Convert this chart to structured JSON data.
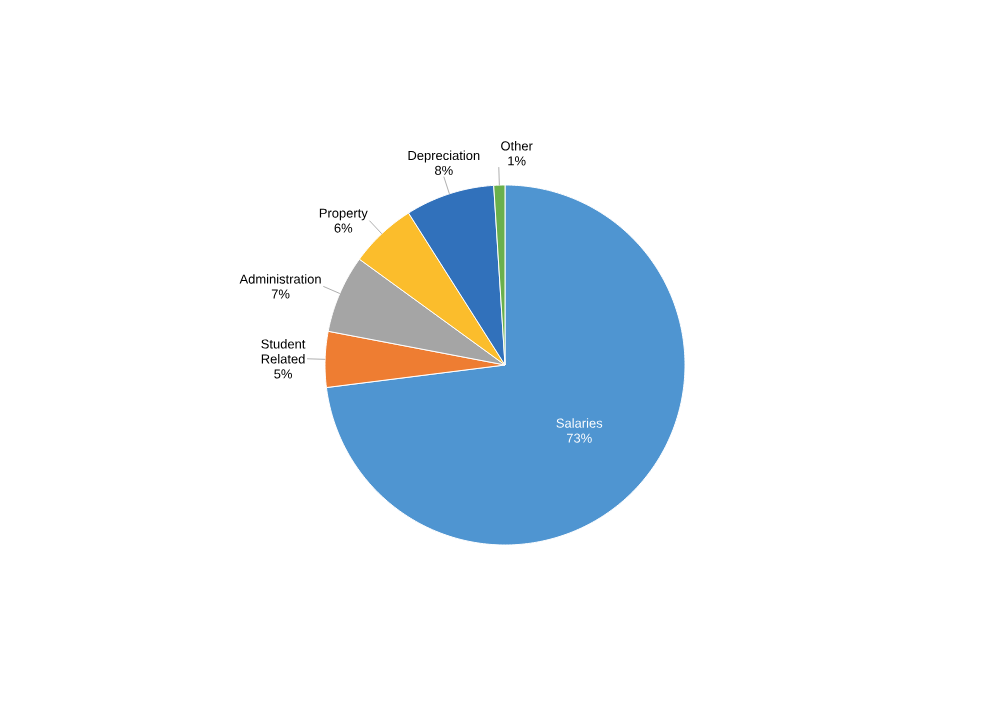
{
  "chart_data": {
    "type": "pie",
    "categories": [
      "Salaries",
      "Student Related",
      "Administration",
      "Property",
      "Depreciation",
      "Other"
    ],
    "values": [
      73,
      5,
      7,
      6,
      8,
      1
    ],
    "colors": [
      "#4f95d1",
      "#ee7d32",
      "#a5a5a5",
      "#fbbd2c",
      "#3171bb",
      "#6ab04c"
    ],
    "value_labels": [
      "73%",
      "5%",
      "7%",
      "6%",
      "8%",
      "1%"
    ]
  }
}
